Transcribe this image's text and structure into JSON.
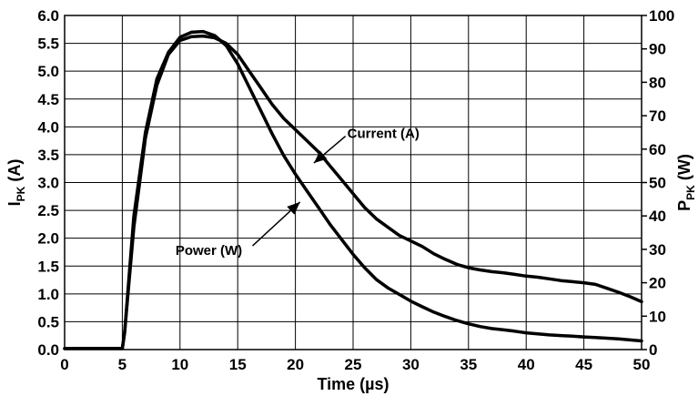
{
  "chart_data": {
    "type": "line",
    "xlabel": "Time (µs)",
    "ylabel_left": {
      "main": "I",
      "sub": "PK",
      "suffix": " (A)"
    },
    "ylabel_right": {
      "main": "P",
      "sub": "PK",
      "suffix": " (W)"
    },
    "xlim": [
      0,
      50
    ],
    "ylim_left": [
      0,
      6.0
    ],
    "ylim_right": [
      0,
      100
    ],
    "x_ticks": [
      "0",
      "5",
      "10",
      "15",
      "20",
      "25",
      "30",
      "35",
      "40",
      "45",
      "50"
    ],
    "y_left_ticks": [
      "0.0",
      "0.5",
      "1.0",
      "1.5",
      "2.0",
      "2.5",
      "3.0",
      "3.5",
      "4.0",
      "4.5",
      "5.0",
      "5.5",
      "6.0"
    ],
    "y_right_ticks": [
      "0",
      "10",
      "20",
      "30",
      "40",
      "50",
      "60",
      "70",
      "80",
      "90",
      "100"
    ],
    "grid": true,
    "series": [
      {
        "name": "Current (A)",
        "axis": "left",
        "x": [
          0,
          5,
          5.2,
          6,
          7,
          8,
          9,
          10,
          11,
          12,
          13,
          14,
          15,
          16,
          17,
          18,
          19,
          20,
          21,
          22,
          23,
          24,
          25,
          26,
          27,
          28,
          29,
          30,
          31,
          32,
          33,
          34,
          35,
          36,
          37,
          38,
          39,
          40,
          41,
          42,
          43,
          44,
          45,
          46,
          47,
          48,
          49,
          50
        ],
        "y": [
          0.02,
          0.02,
          0.3,
          2.2,
          3.8,
          4.75,
          5.3,
          5.55,
          5.62,
          5.63,
          5.6,
          5.5,
          5.3,
          5.0,
          4.7,
          4.4,
          4.15,
          3.95,
          3.75,
          3.55,
          3.3,
          3.05,
          2.8,
          2.55,
          2.35,
          2.2,
          2.05,
          1.95,
          1.85,
          1.72,
          1.62,
          1.53,
          1.47,
          1.43,
          1.4,
          1.38,
          1.35,
          1.32,
          1.3,
          1.27,
          1.24,
          1.22,
          1.2,
          1.17,
          1.1,
          1.03,
          0.95,
          0.86
        ]
      },
      {
        "name": "Power (W)",
        "axis": "right",
        "x": [
          0,
          5,
          5.2,
          6,
          7,
          8,
          9,
          10,
          11,
          12,
          13,
          14,
          15,
          16,
          17,
          18,
          19,
          20,
          21,
          22,
          23,
          24,
          25,
          26,
          27,
          28,
          29,
          30,
          31,
          32,
          33,
          34,
          35,
          36,
          37,
          38,
          39,
          40,
          41,
          42,
          43,
          44,
          45,
          46,
          47,
          48,
          49,
          50
        ],
        "y": [
          0.3,
          0.3,
          5,
          40,
          65,
          81,
          89,
          93.5,
          95,
          95.2,
          94,
          91,
          85.5,
          78.5,
          71.5,
          64.5,
          58,
          52.5,
          47.5,
          42.5,
          37.5,
          33,
          28.5,
          24.5,
          21,
          18.5,
          16.5,
          14.5,
          12.8,
          11.2,
          9.9,
          8.7,
          7.7,
          6.9,
          6.3,
          5.9,
          5.5,
          5.0,
          4.7,
          4.4,
          4.2,
          4.0,
          3.8,
          3.6,
          3.4,
          3.2,
          2.9,
          2.6
        ]
      }
    ],
    "annotations": [
      {
        "text": "Current (A)",
        "x": 24.5,
        "y": 3.8,
        "arrow_to_x": 21.6,
        "arrow_to_y": 3.35,
        "axis": "left"
      },
      {
        "text": "Power (W)",
        "x": 12.5,
        "y": 1.7,
        "arrow_to_x": 20.4,
        "arrow_to_y": 2.65,
        "axis": "left"
      }
    ]
  }
}
